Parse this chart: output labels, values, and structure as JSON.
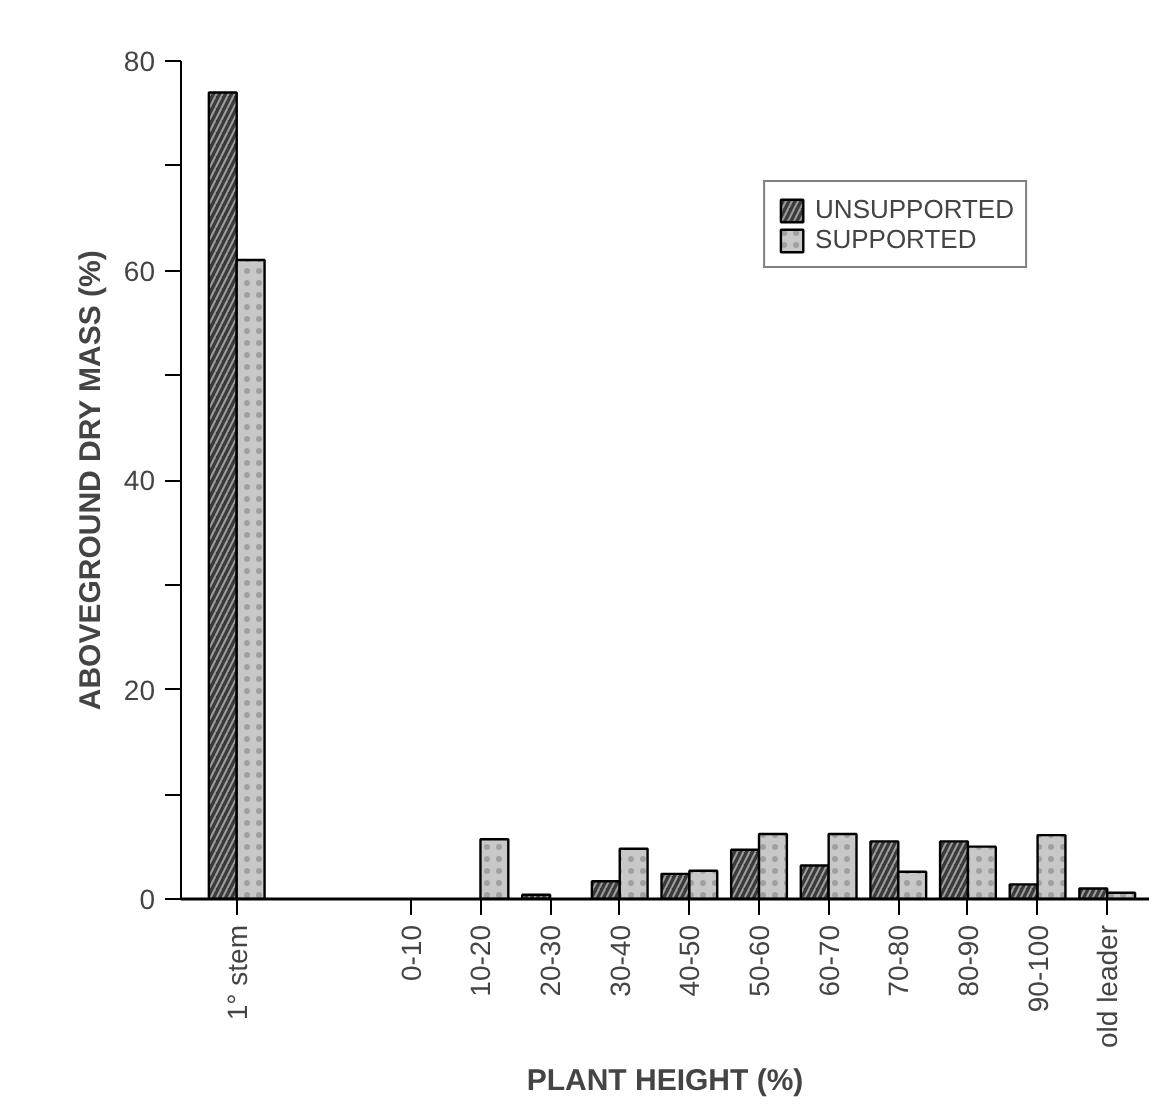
{
  "chart_data": {
    "type": "bar",
    "xlabel": "PLANT HEIGHT (%)",
    "ylabel": "ABOVEGROUND DRY MASS (%)",
    "categories": [
      "1° stem",
      "0-10",
      "10-20",
      "20-30",
      "30-40",
      "40-50",
      "50-60",
      "60-70",
      "70-80",
      "80-90",
      "90-100",
      "old leader"
    ],
    "series": [
      {
        "name": "UNSUPPORTED",
        "color": "#3a3a3a",
        "values": [
          77,
          0,
          0,
          0.4,
          1.7,
          2.4,
          4.7,
          3.2,
          5.5,
          5.5,
          1.4,
          1.0
        ]
      },
      {
        "name": "SUPPORTED",
        "color": "#c8c8c8",
        "values": [
          61,
          0,
          5.7,
          0,
          4.8,
          2.7,
          6.2,
          6.2,
          2.6,
          5.0,
          6.1,
          0.6
        ]
      }
    ],
    "ylim": [
      0,
      80
    ],
    "yticks": [
      0,
      {
        "value": 10,
        "label": null
      },
      20,
      {
        "value": 30,
        "label": null
      },
      40,
      {
        "value": 50,
        "label": null
      },
      60,
      {
        "value": 70,
        "label": null
      },
      80
    ],
    "grid": false,
    "legend": "top right"
  }
}
